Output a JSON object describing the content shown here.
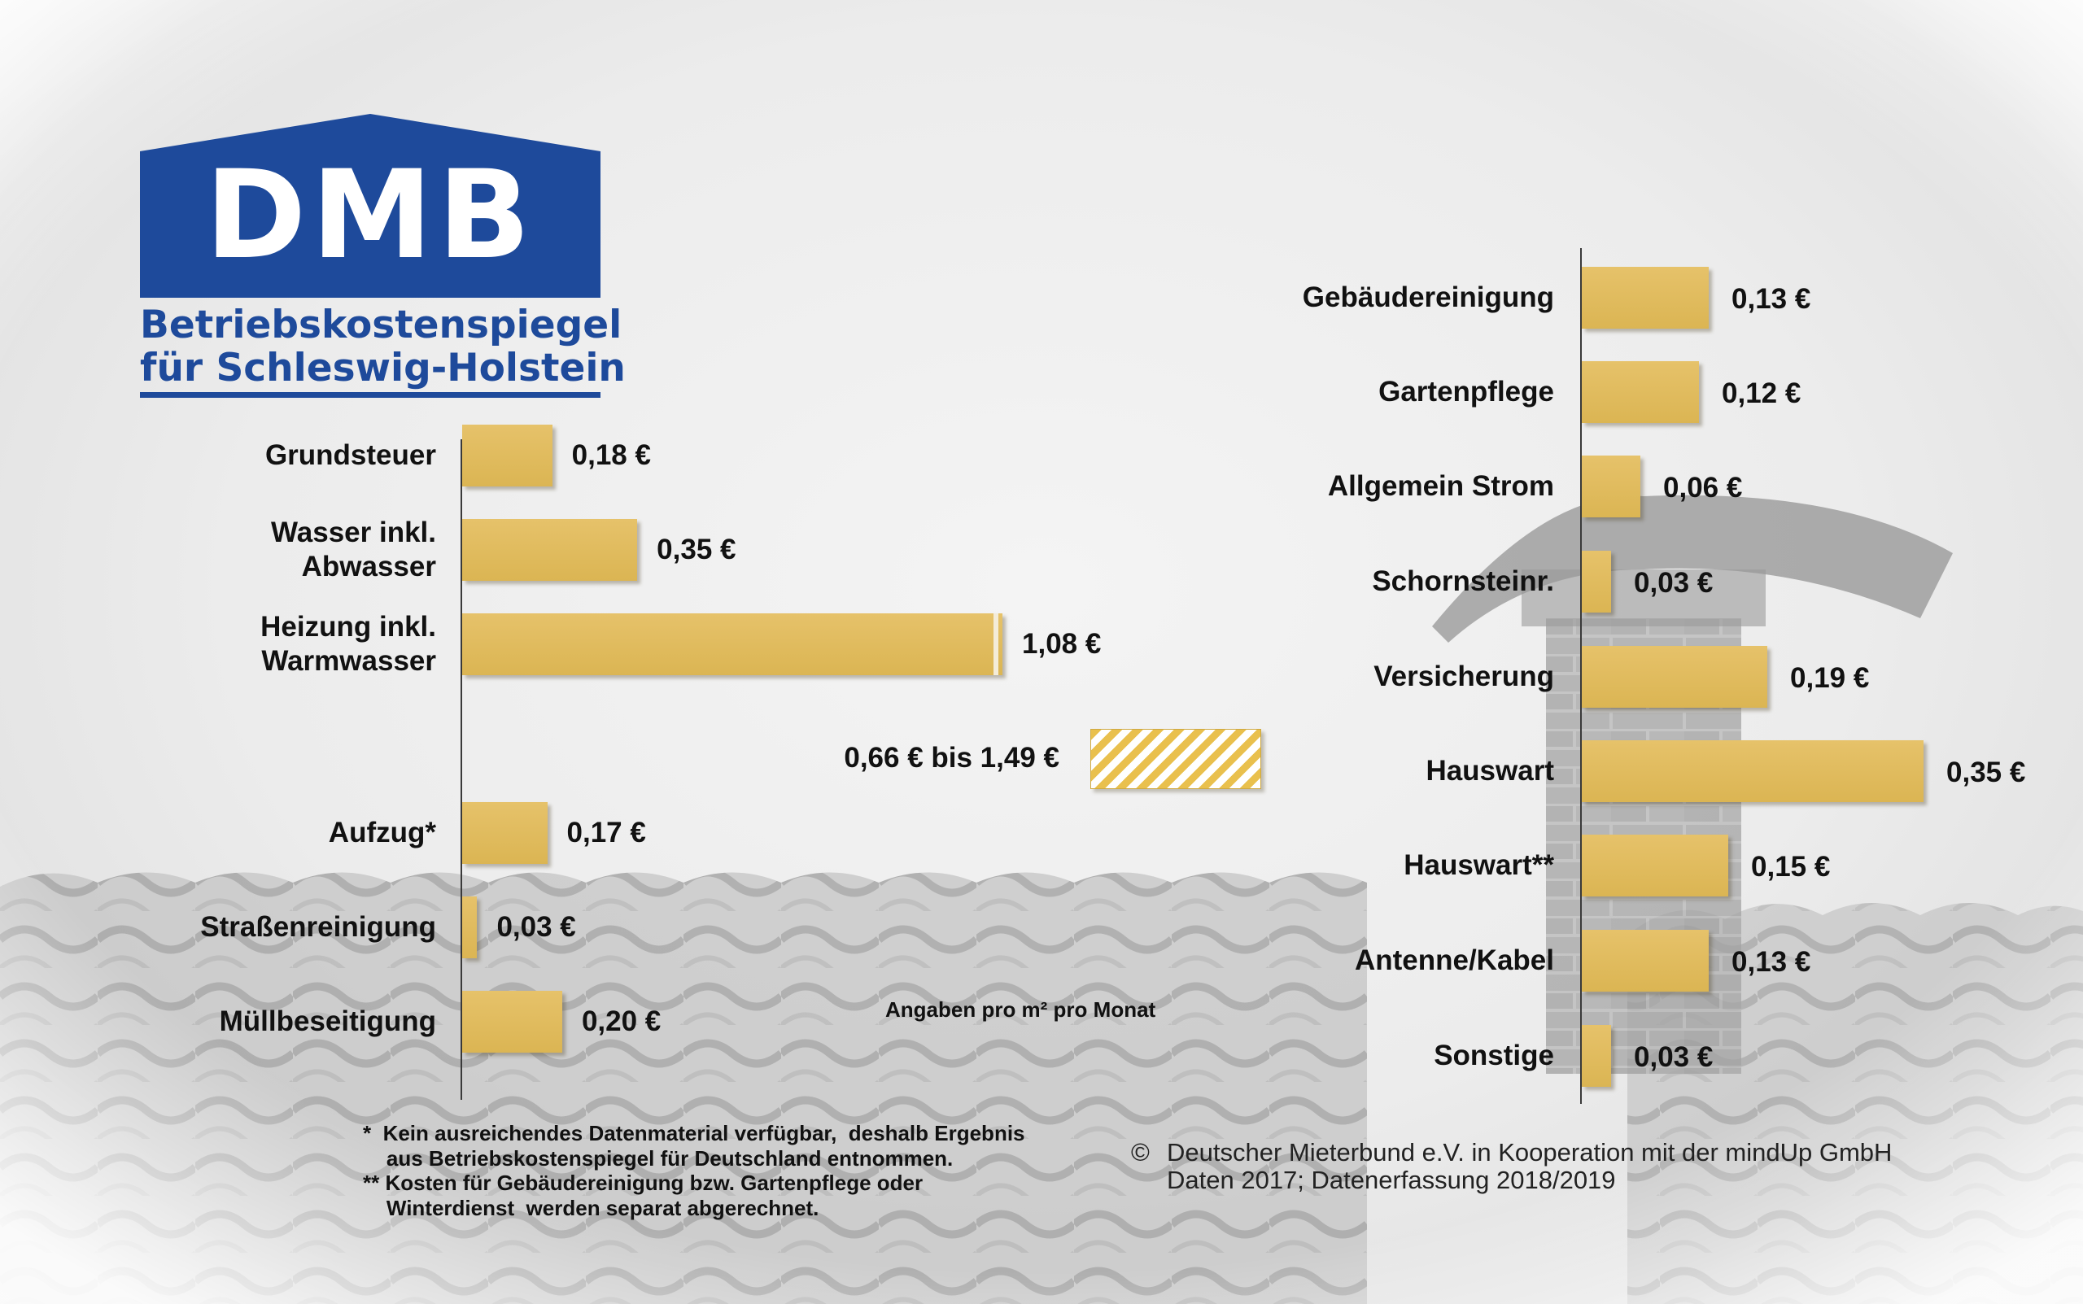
{
  "logo": {
    "mark": "DMB",
    "line1": "Betriebskostenspiegel",
    "line2": "für Schleswig-Holstein",
    "color": "#1e4a9b"
  },
  "chart_data": [
    {
      "type": "bar",
      "orientation": "horizontal",
      "categories": [
        "Grundsteuer",
        "Wasser inkl.\nAbwasser",
        "Heizung inkl.\nWarmwasser",
        "Aufzug*",
        "Straßenreinigung",
        "Müllbeseitigung"
      ],
      "values": [
        0.18,
        0.35,
        1.08,
        0.17,
        0.03,
        0.2
      ],
      "value_labels": [
        "0,18 €",
        "0,35 €",
        "1,08 €",
        "0,17 €",
        "0,03 €",
        "0,20 €"
      ],
      "range_label": "0,66 € bis 1,49 €",
      "range": [
        0.66,
        1.49
      ],
      "bar_color": "#e2bd5e"
    },
    {
      "type": "bar",
      "orientation": "horizontal",
      "categories": [
        "Gebäudereinigung",
        "Gartenpflege",
        "Allgemein Strom",
        "Schornsteinr.",
        "Versicherung",
        "Hauswart",
        "Hauswart**",
        "Antenne/Kabel",
        "Sonstige"
      ],
      "values": [
        0.13,
        0.12,
        0.06,
        0.03,
        0.19,
        0.35,
        0.15,
        0.13,
        0.03
      ],
      "value_labels": [
        "0,13 €",
        "0,12 €",
        "0,06 €",
        "0,03 €",
        "0,19 €",
        "0,35 €",
        "0,15 €",
        "0,13 €",
        "0,03 €"
      ],
      "bar_color": "#e2bd5e"
    }
  ],
  "units_note": "Angaben pro m² pro Monat",
  "footnotes": {
    "line1": "*  Kein ausreichendes Datenmaterial verfügbar,  deshalb Ergebnis\n    aus Betriebskostenspiegel für Deutschland entnommen.",
    "line2": "** Kosten für Gebäudereinigung bzw. Gartenpflege oder\n    Winterdienst  werden separat abgerechnet."
  },
  "copyright": {
    "symbol": "©",
    "text": "Deutscher Mieterbund e.V. in Kooperation mit der mindUp GmbH\nDaten 2017; Datenerfassung 2018/2019"
  }
}
